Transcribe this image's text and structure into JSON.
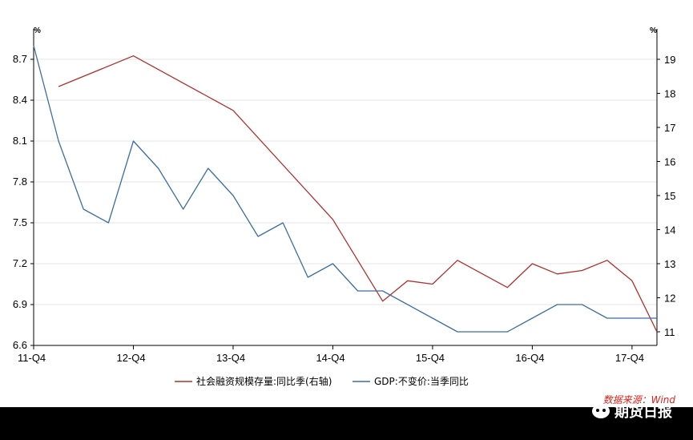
{
  "chart_data": {
    "type": "line",
    "categories": [
      "11-Q4",
      "12-Q1",
      "12-Q2",
      "12-Q3",
      "12-Q4",
      "13-Q1",
      "13-Q2",
      "13-Q3",
      "13-Q4",
      "14-Q1",
      "14-Q2",
      "14-Q3",
      "14-Q4",
      "15-Q1",
      "15-Q2",
      "15-Q3",
      "15-Q4",
      "16-Q1",
      "16-Q2",
      "16-Q3",
      "16-Q4",
      "17-Q1",
      "17-Q2",
      "17-Q3",
      "17-Q4",
      "18-Q1"
    ],
    "x_tick_labels": [
      "11-Q4",
      "12-Q4",
      "13-Q4",
      "14-Q4",
      "15-Q4",
      "16-Q4",
      "17-Q4"
    ],
    "y_left": {
      "unit": "%",
      "ticks": [
        "6.6",
        "6.9",
        "7.2",
        "7.5",
        "7.8",
        "8.1",
        "8.4",
        "8.7"
      ],
      "ylim": [
        6.6,
        8.9
      ]
    },
    "y_right": {
      "unit": "%",
      "ticks": [
        "11",
        "12",
        "13",
        "14",
        "15",
        "16",
        "17",
        "18",
        "19"
      ],
      "ylim": [
        10.6,
        19.8
      ]
    },
    "series": [
      {
        "name": "社会融资规模存量:同比季(右轴)",
        "axis": "right",
        "color": "#b0302f",
        "values": [
          null,
          18.2,
          null,
          null,
          19.1,
          null,
          null,
          null,
          17.5,
          null,
          null,
          null,
          14.3,
          null,
          11.9,
          12.5,
          12.4,
          13.1,
          null,
          12.3,
          13.0,
          12.7,
          12.8,
          13.1,
          12.5,
          11.0
        ]
      },
      {
        "name": "GDP:不变价:当季同比",
        "axis": "left",
        "color": "#3b6ea5",
        "values": [
          8.8,
          8.1,
          7.6,
          7.5,
          8.1,
          7.9,
          7.6,
          7.9,
          7.7,
          7.4,
          7.5,
          7.1,
          7.2,
          7.0,
          7.0,
          6.9,
          6.8,
          6.7,
          6.7,
          6.7,
          6.8,
          6.9,
          6.9,
          6.8,
          6.8,
          6.8
        ]
      }
    ],
    "grid": true,
    "legend": "bottom-center"
  },
  "watermark": {
    "source": "数据来源：Wind",
    "brand": "期货日报"
  }
}
